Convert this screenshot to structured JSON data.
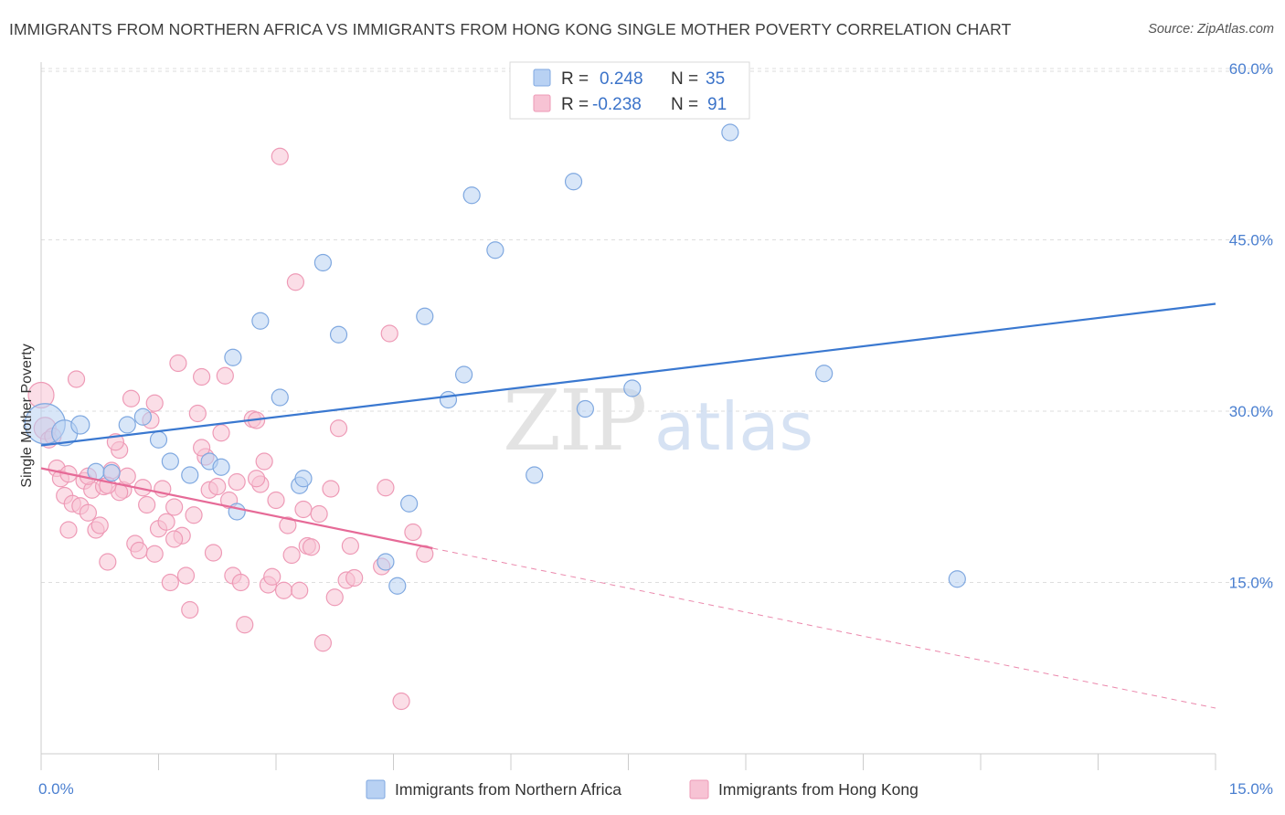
{
  "title": "IMMIGRANTS FROM NORTHERN AFRICA VS IMMIGRANTS FROM HONG KONG SINGLE MOTHER POVERTY CORRELATION CHART",
  "source": "Source: ZipAtlas.com",
  "watermark": {
    "zip": "ZIP",
    "atlas": "atlas"
  },
  "legend_top": [
    {
      "r_label": "R =",
      "r_value": "0.248",
      "n_label": "N =",
      "n_value": "35"
    },
    {
      "r_label": "R =",
      "r_value": "-0.238",
      "n_label": "N =",
      "n_value": "91"
    }
  ],
  "colors": {
    "blue_fill": "#b8d1f3",
    "blue_stroke": "#7fa8e0",
    "blue_line": "#3a78d0",
    "pink_fill": "#f7c3d4",
    "pink_stroke": "#ee9ab6",
    "pink_line": "#e66a97",
    "grid": "#dedede",
    "tick_label": "#4a7fd0"
  },
  "chart_data": {
    "type": "scatter",
    "title": "IMMIGRANTS FROM NORTHERN AFRICA VS IMMIGRANTS FROM HONG KONG SINGLE MOTHER POVERTY CORRELATION CHART",
    "xlabel": "",
    "ylabel": "Single Mother Poverty",
    "xlim": [
      0,
      15
    ],
    "ylim": [
      0,
      62
    ],
    "x_tick_labels": [
      "0.0%",
      "15.0%"
    ],
    "y_ticks": [
      15,
      30,
      45,
      60
    ],
    "y_tick_labels": [
      "15.0%",
      "30.0%",
      "45.0%",
      "60.0%"
    ],
    "grid": true,
    "legend_position": "top-center",
    "series": [
      {
        "name": "Immigrants from Northern Africa",
        "color": "#b8d1f3",
        "r": 0.248,
        "n": 35,
        "trend": {
          "x": [
            0,
            15
          ],
          "y": [
            27.0,
            39.4
          ],
          "style": "solid"
        },
        "points": [
          [
            0.05,
            28.9,
            22
          ],
          [
            0.3,
            28.1,
            14
          ],
          [
            0.5,
            28.8,
            10
          ],
          [
            0.7,
            24.7,
            9
          ],
          [
            0.9,
            24.6,
            9
          ],
          [
            1.1,
            28.8,
            9
          ],
          [
            1.3,
            29.5,
            9
          ],
          [
            1.5,
            27.5,
            9
          ],
          [
            1.65,
            25.6,
            9
          ],
          [
            1.9,
            24.4,
            9
          ],
          [
            2.15,
            25.6,
            9
          ],
          [
            2.3,
            25.1,
            9
          ],
          [
            2.5,
            21.2,
            9
          ],
          [
            2.45,
            34.7,
            9
          ],
          [
            2.8,
            37.9,
            9
          ],
          [
            3.05,
            31.2,
            9
          ],
          [
            3.3,
            23.5,
            9
          ],
          [
            3.35,
            24.1,
            9
          ],
          [
            3.6,
            43.0,
            9
          ],
          [
            3.8,
            36.7,
            9
          ],
          [
            4.4,
            16.8,
            9
          ],
          [
            4.55,
            14.7,
            9
          ],
          [
            4.7,
            21.9,
            9
          ],
          [
            4.9,
            38.3,
            9
          ],
          [
            5.2,
            31.0,
            9
          ],
          [
            5.4,
            33.2,
            9
          ],
          [
            5.5,
            48.9,
            9
          ],
          [
            5.8,
            44.1,
            9
          ],
          [
            6.3,
            24.4,
            9
          ],
          [
            6.8,
            50.1,
            9
          ],
          [
            6.95,
            30.2,
            9
          ],
          [
            7.55,
            32.0,
            9
          ],
          [
            8.8,
            54.4,
            9
          ],
          [
            10.0,
            33.3,
            9
          ],
          [
            11.7,
            15.3,
            9
          ]
        ]
      },
      {
        "name": "Immigrants from Hong Kong",
        "color": "#f7c3d4",
        "r": -0.238,
        "n": 91,
        "trend": {
          "x": [
            0,
            5.0,
            15
          ],
          "y": [
            25.0,
            18.0,
            4.0
          ],
          "style": "solid-then-dashed",
          "solid_until_x": 5.0
        },
        "points": [
          [
            0.0,
            31.4,
            14
          ],
          [
            0.05,
            28.5,
            12
          ],
          [
            0.1,
            27.5,
            9
          ],
          [
            0.2,
            25.0,
            9
          ],
          [
            0.25,
            24.1,
            9
          ],
          [
            0.3,
            22.6,
            9
          ],
          [
            0.35,
            24.5,
            9
          ],
          [
            0.4,
            21.9,
            9
          ],
          [
            0.45,
            32.8,
            9
          ],
          [
            0.5,
            21.7,
            9
          ],
          [
            0.55,
            23.9,
            9
          ],
          [
            0.6,
            21.1,
            9
          ],
          [
            0.65,
            23.1,
            9
          ],
          [
            0.7,
            19.6,
            9
          ],
          [
            0.75,
            20.0,
            9
          ],
          [
            0.8,
            23.4,
            9
          ],
          [
            0.85,
            16.8,
            9
          ],
          [
            0.9,
            24.8,
            9
          ],
          [
            1.0,
            26.6,
            9
          ],
          [
            0.95,
            27.3,
            9
          ],
          [
            1.05,
            23.1,
            9
          ],
          [
            1.1,
            24.3,
            9
          ],
          [
            1.2,
            18.4,
            9
          ],
          [
            1.25,
            17.8,
            9
          ],
          [
            1.3,
            23.3,
            9
          ],
          [
            1.35,
            21.8,
            9
          ],
          [
            1.4,
            29.2,
            9
          ],
          [
            1.45,
            17.5,
            9
          ],
          [
            1.5,
            19.7,
            9
          ],
          [
            1.55,
            23.2,
            9
          ],
          [
            1.6,
            20.3,
            9
          ],
          [
            1.65,
            15.0,
            9
          ],
          [
            1.7,
            21.6,
            9
          ],
          [
            1.75,
            34.2,
            9
          ],
          [
            1.8,
            19.1,
            9
          ],
          [
            1.85,
            15.6,
            9
          ],
          [
            1.9,
            12.6,
            9
          ],
          [
            1.95,
            20.9,
            9
          ],
          [
            2.0,
            29.8,
            9
          ],
          [
            2.05,
            33.0,
            9
          ],
          [
            2.1,
            26.0,
            9
          ],
          [
            2.15,
            23.1,
            9
          ],
          [
            2.2,
            17.6,
            9
          ],
          [
            2.25,
            23.4,
            9
          ],
          [
            2.3,
            28.1,
            9
          ],
          [
            2.35,
            33.1,
            9
          ],
          [
            2.4,
            22.2,
            9
          ],
          [
            2.45,
            15.6,
            9
          ],
          [
            2.5,
            23.8,
            9
          ],
          [
            2.55,
            15.0,
            9
          ],
          [
            2.6,
            11.3,
            9
          ],
          [
            2.7,
            29.3,
            9
          ],
          [
            2.75,
            29.2,
            9
          ],
          [
            2.8,
            23.6,
            9
          ],
          [
            2.85,
            25.6,
            9
          ],
          [
            2.9,
            14.8,
            9
          ],
          [
            2.95,
            15.5,
            9
          ],
          [
            3.0,
            22.2,
            9
          ],
          [
            3.05,
            52.3,
            9
          ],
          [
            3.1,
            14.3,
            9
          ],
          [
            3.15,
            20.0,
            9
          ],
          [
            3.2,
            17.4,
            9
          ],
          [
            3.25,
            41.3,
            9
          ],
          [
            3.3,
            14.3,
            9
          ],
          [
            3.35,
            21.4,
            9
          ],
          [
            3.4,
            18.2,
            9
          ],
          [
            3.45,
            18.1,
            9
          ],
          [
            3.6,
            9.7,
            9
          ],
          [
            3.7,
            23.2,
            9
          ],
          [
            3.75,
            13.7,
            9
          ],
          [
            3.8,
            28.5,
            9
          ],
          [
            3.9,
            15.2,
            9
          ],
          [
            3.95,
            18.2,
            9
          ],
          [
            4.0,
            15.4,
            9
          ],
          [
            4.35,
            16.4,
            9
          ],
          [
            4.4,
            23.3,
            9
          ],
          [
            4.45,
            36.8,
            9
          ],
          [
            4.6,
            4.6,
            9
          ],
          [
            4.75,
            19.4,
            9
          ],
          [
            4.9,
            17.5,
            9
          ],
          [
            0.15,
            27.8,
            9
          ],
          [
            0.6,
            24.3,
            9
          ],
          [
            1.15,
            31.1,
            9
          ],
          [
            1.45,
            30.7,
            9
          ],
          [
            2.05,
            26.8,
            9
          ],
          [
            0.35,
            19.6,
            9
          ],
          [
            1.0,
            22.9,
            9
          ],
          [
            2.75,
            24.1,
            9
          ],
          [
            3.55,
            21.0,
            9
          ],
          [
            1.7,
            18.8,
            9
          ],
          [
            0.85,
            23.5,
            9
          ]
        ]
      }
    ]
  },
  "bottom_legend": [
    {
      "label": "Immigrants from Northern Africa"
    },
    {
      "label": "Immigrants from Hong Kong"
    }
  ]
}
